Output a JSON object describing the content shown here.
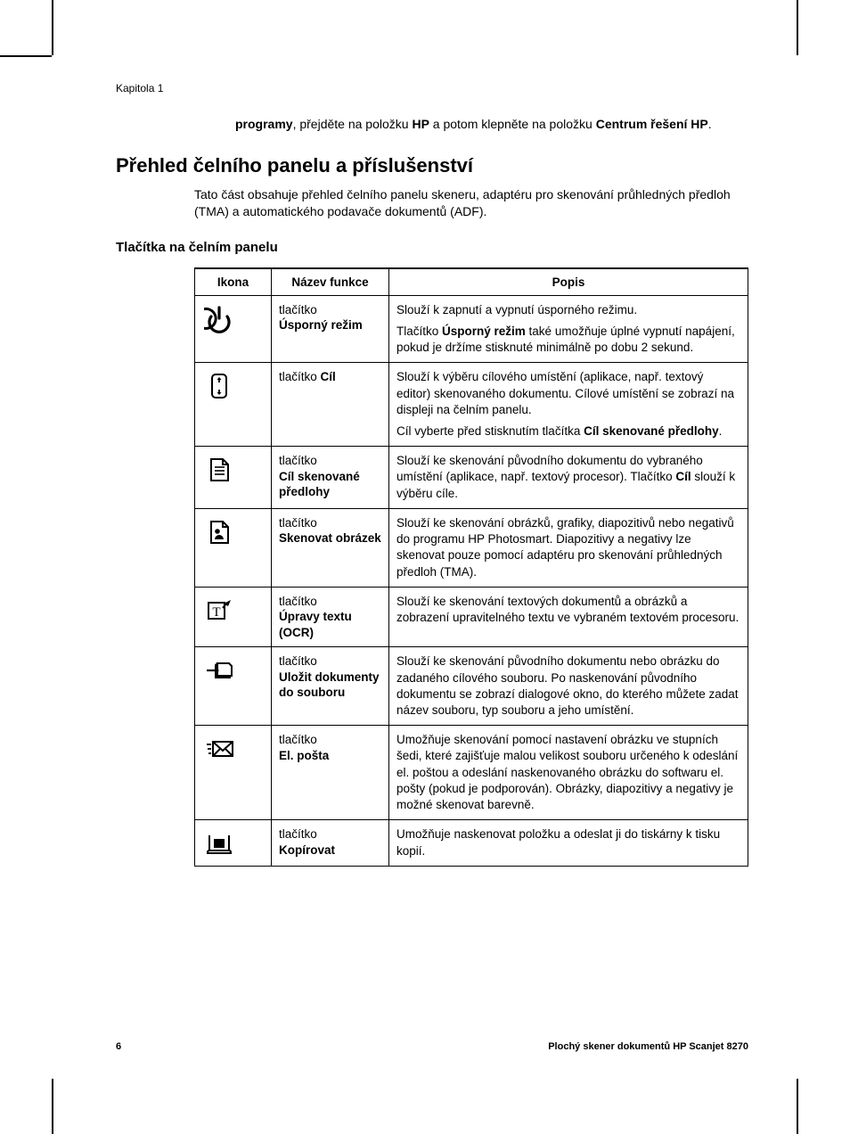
{
  "chapter_label": "Kapitola 1",
  "intro_continued": {
    "prefix_bold": "programy",
    "mid": ", přejděte na položku ",
    "bold2": "HP",
    "mid2": " a potom klepněte na položku ",
    "bold3": "Centrum řešení HP",
    "suffix": "."
  },
  "section_heading": "Přehled čelního panelu a příslušenství",
  "section_intro": "Tato část obsahuje přehled čelního panelu skeneru, adaptéru pro skenování průhledných předloh (TMA) a automatického podavače dokumentů (ADF).",
  "subheading": "Tlačítka na čelním panelu",
  "table": {
    "headers": {
      "icon": "Ikona",
      "name": "Název funkce",
      "desc": "Popis"
    },
    "rows": [
      {
        "icon": "power-icon",
        "name_lead": "tlačítko",
        "name_bold": "Úsporný režim",
        "desc": [
          {
            "plain": "Slouží k zapnutí a vypnutí úsporného režimu."
          },
          {
            "parts": [
              {
                "t": "Tlačítko "
              },
              {
                "t": "Úsporný režim",
                "b": true
              },
              {
                "t": " také umožňuje úplné vypnutí napájení, pokud je držíme stisknuté minimálně po dobu 2 sekund."
              }
            ]
          }
        ]
      },
      {
        "icon": "target-icon",
        "name_lead": "tlačítko ",
        "name_bold": "Cíl",
        "inline_name": true,
        "desc": [
          {
            "plain": "Slouží k výběru cílového umístění (aplikace, např. textový editor) skenovaného dokumentu. Cílové umístění se zobrazí na displeji na čelním panelu."
          },
          {
            "parts": [
              {
                "t": "Cíl vyberte před stisknutím tlačítka "
              },
              {
                "t": "Cíl skenované předlohy",
                "b": true
              },
              {
                "t": "."
              }
            ]
          }
        ]
      },
      {
        "icon": "document-icon",
        "name_lead": "tlačítko ",
        "name_bold": "Cíl skenované předlohy",
        "desc": [
          {
            "parts": [
              {
                "t": "Slouží ke skenování původního dokumentu do vybraného umístění (aplikace, např. textový procesor). Tlačítko "
              },
              {
                "t": "Cíl",
                "b": true
              },
              {
                "t": " slouží k výběru cíle."
              }
            ]
          }
        ]
      },
      {
        "icon": "picture-icon",
        "name_lead": "tlačítko",
        "name_bold": "Skenovat obrázek",
        "desc": [
          {
            "plain": "Slouží ke skenování obrázků, grafiky, diapozitivů nebo negativů do programu HP Photosmart. Diapozitivy a negativy lze skenovat pouze pomocí adaptéru pro skenování průhledných předloh (TMA)."
          }
        ]
      },
      {
        "icon": "ocr-icon",
        "name_lead": "tlačítko ",
        "name_bold": "Úpravy textu (OCR)",
        "desc": [
          {
            "plain": "Slouží ke skenování textových dokumentů a obrázků a zobrazení upravitelného textu ve vybraném textovém procesoru."
          }
        ]
      },
      {
        "icon": "save-file-icon",
        "name_lead": "tlačítko ",
        "name_bold": "Uložit dokumenty do souboru",
        "desc": [
          {
            "plain": "Slouží ke skenování původního dokumentu nebo obrázku do zadaného cílového souboru. Po naskenování původního dokumentu se zobrazí dialogové okno, do kterého můžete zadat název souboru, typ souboru a jeho umístění."
          }
        ]
      },
      {
        "icon": "email-icon",
        "name_lead": "tlačítko ",
        "name_bold": "El. pošta",
        "desc": [
          {
            "plain": "Umožňuje skenování pomocí nastavení obrázku ve stupních šedi, které zajišťuje malou velikost souboru určeného k odeslání el. poštou a odeslání naskenovaného obrázku do softwaru el. pošty (pokud je podporován). Obrázky, diapozitivy a negativy je možné skenovat barevně."
          }
        ]
      },
      {
        "icon": "copy-icon",
        "name_lead": "tlačítko",
        "name_bold": "Kopírovat",
        "desc": [
          {
            "plain": "Umožňuje naskenovat položku a odeslat ji do tiskárny k tisku kopií."
          }
        ]
      }
    ]
  },
  "footer": {
    "page_num": "6",
    "doc_title": "Plochý skener dokumentů HP Scanjet 8270"
  }
}
